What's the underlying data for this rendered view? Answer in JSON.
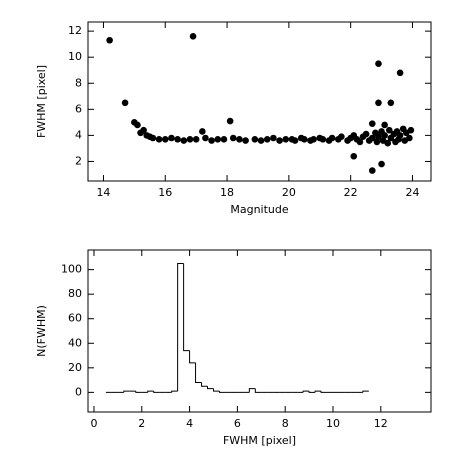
{
  "chart_data": [
    {
      "type": "scatter",
      "xlabel": "Magnitude",
      "ylabel": "FWHM [pixel]",
      "color": "#000000",
      "xlim": [
        13.5,
        24.6
      ],
      "ylim": [
        0.5,
        12.7
      ],
      "xticks": [
        14,
        16,
        18,
        20,
        22,
        24
      ],
      "yticks": [
        2,
        4,
        6,
        8,
        10,
        12
      ],
      "x": [
        14.2,
        14.7,
        15.0,
        15.1,
        15.2,
        15.3,
        15.4,
        15.5,
        15.6,
        16.9,
        18.1,
        17.2,
        22.1,
        22.7,
        23.0,
        22.9,
        22.9,
        23.3,
        23.6,
        22.7,
        23.1,
        15.8,
        16.0,
        16.2,
        16.4,
        16.6,
        16.8,
        17.0,
        17.3,
        17.5,
        17.7,
        17.9,
        18.2,
        18.4,
        18.6,
        18.9,
        19.1,
        19.3,
        19.5,
        19.7,
        19.9,
        20.1,
        20.2,
        20.4,
        20.5,
        20.7,
        20.8,
        21.0,
        21.1,
        21.3,
        21.4,
        21.6,
        21.7,
        21.9,
        22.0,
        22.1,
        22.2,
        22.3,
        22.4,
        22.5,
        22.6,
        22.7,
        22.8,
        22.85,
        22.9,
        23.0,
        23.05,
        23.1,
        23.2,
        23.25,
        23.3,
        23.4,
        23.45,
        23.5,
        23.55,
        23.6,
        23.7,
        23.75,
        23.8,
        23.9,
        23.95
      ],
      "y": [
        11.3,
        6.5,
        5.0,
        4.8,
        4.2,
        4.4,
        4.0,
        3.9,
        3.8,
        11.6,
        5.1,
        4.3,
        2.4,
        1.3,
        1.8,
        9.5,
        6.5,
        6.5,
        8.8,
        4.9,
        4.8,
        3.7,
        3.7,
        3.8,
        3.7,
        3.6,
        3.7,
        3.7,
        3.8,
        3.6,
        3.7,
        3.7,
        3.8,
        3.7,
        3.6,
        3.7,
        3.6,
        3.7,
        3.8,
        3.6,
        3.7,
        3.7,
        3.6,
        3.8,
        3.7,
        3.6,
        3.7,
        3.8,
        3.7,
        3.6,
        3.8,
        3.7,
        3.9,
        3.6,
        3.8,
        4.0,
        3.7,
        3.5,
        3.9,
        4.1,
        3.6,
        3.8,
        4.2,
        3.5,
        3.9,
        4.3,
        3.6,
        4.0,
        3.4,
        4.4,
        3.8,
        4.1,
        3.5,
        4.3,
        3.7,
        4.0,
        4.5,
        3.6,
        4.2,
        3.8,
        4.4
      ]
    },
    {
      "type": "histogram",
      "xlabel": "FWHM [pixel]",
      "ylabel": "N(FWHM)",
      "color": "#000000",
      "xlim": [
        -0.25,
        14.1
      ],
      "ylim": [
        -16,
        116
      ],
      "xticks": [
        0,
        2,
        4,
        6,
        8,
        10,
        12
      ],
      "yticks": [
        0,
        20,
        40,
        60,
        80,
        100
      ],
      "bins": [
        0.5,
        0.75,
        1.0,
        1.25,
        1.5,
        1.75,
        2.0,
        2.25,
        2.5,
        2.75,
        3.0,
        3.25,
        3.5,
        3.75,
        4.0,
        4.25,
        4.5,
        4.75,
        5.0,
        5.25,
        5.5,
        5.75,
        6.0,
        6.25,
        6.5,
        6.75,
        7.0,
        7.25,
        7.5,
        7.75,
        8.0,
        8.25,
        8.5,
        8.75,
        9.0,
        9.25,
        9.5,
        9.75,
        10.0,
        10.25,
        10.5,
        10.75,
        11.0,
        11.25,
        11.5
      ],
      "counts": [
        0,
        0,
        0,
        1,
        1,
        0,
        0,
        1,
        0,
        0,
        0,
        1,
        105,
        34,
        24,
        8,
        5,
        3,
        1,
        0,
        0,
        0,
        0,
        0,
        3,
        0,
        0,
        0,
        0,
        0,
        0,
        0,
        0,
        1,
        0,
        1,
        0,
        0,
        0,
        0,
        0,
        0,
        0,
        1
      ]
    }
  ]
}
